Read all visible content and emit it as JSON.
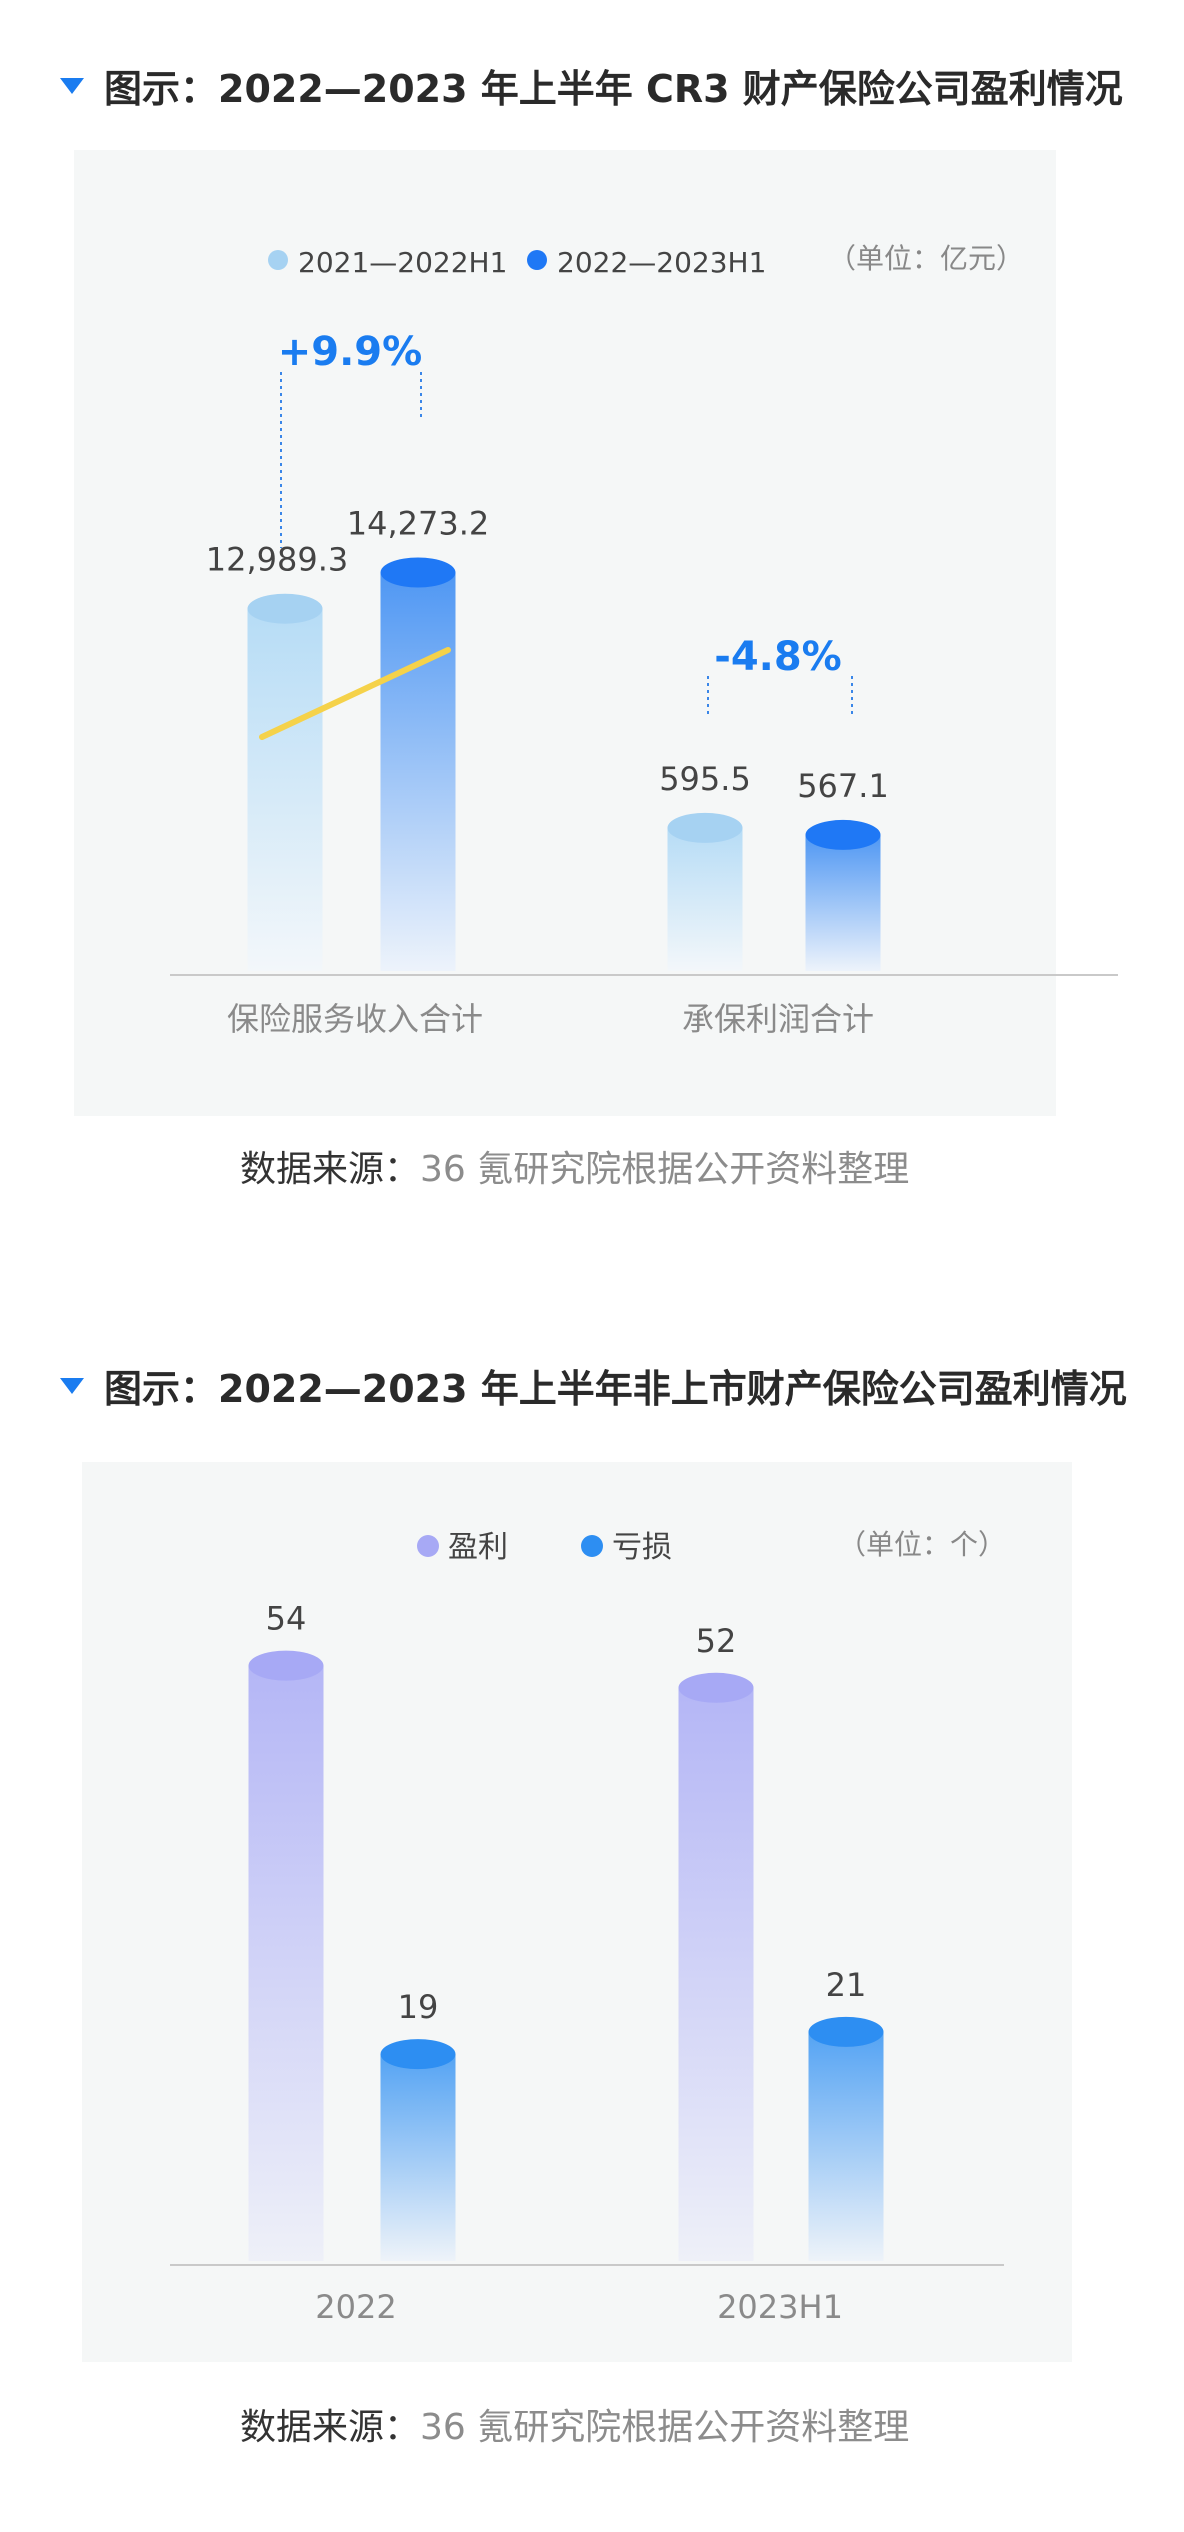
{
  "colors": {
    "light_blue": "#a6d2f2",
    "dark_blue": "#1f78f5",
    "purple": "#a7a9f5",
    "loss_blue": "#2d8ef2",
    "accent": "#1a7cf0",
    "trend_line": "#f5d24a"
  },
  "icons": [
    "triangle-down-icon",
    "legend-dot-icon"
  ],
  "chart_data": [
    {
      "type": "bar",
      "title": "图示：2022—2023 年上半年 CR3 财产保险公司盈利情况",
      "unit": "（单位：亿元）",
      "categories": [
        "保险服务收入合计",
        "承保利润合计"
      ],
      "series": [
        {
          "name": "2021—2022H1",
          "values": [
            12989.3,
            595.5
          ],
          "labels": [
            "12,989.3",
            "595.5"
          ]
        },
        {
          "name": "2022—2023H1",
          "values": [
            14273.2,
            567.1
          ],
          "labels": [
            "14,273.2",
            "567.1"
          ]
        }
      ],
      "annotations": [
        "+9.9%",
        "-4.8%"
      ],
      "source_label": "数据来源：",
      "source_value": "36 氪研究院根据公开资料整理"
    },
    {
      "type": "bar",
      "title": "图示：2022—2023 年上半年非上市财产保险公司盈利情况",
      "unit": "（单位：个）",
      "categories": [
        "2022",
        "2023H1"
      ],
      "series": [
        {
          "name": "盈利",
          "values": [
            54,
            52
          ],
          "labels": [
            "54",
            "52"
          ]
        },
        {
          "name": "亏损",
          "values": [
            19,
            21
          ],
          "labels": [
            "19",
            "21"
          ]
        }
      ],
      "source_label": "数据来源：",
      "source_value": "36 氪研究院根据公开资料整理"
    }
  ]
}
